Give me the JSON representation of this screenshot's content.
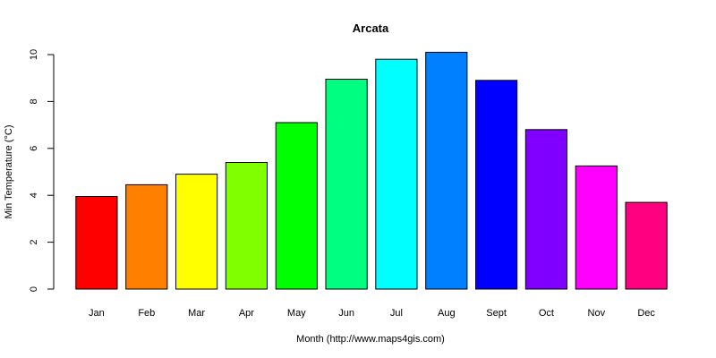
{
  "chart_data": {
    "type": "bar",
    "title": "Arcata",
    "xlabel": "Month (http://www.maps4gis.com)",
    "ylabel": "Min Temperature (°C)",
    "categories": [
      "Jan",
      "Feb",
      "Mar",
      "Apr",
      "May",
      "Jun",
      "Jul",
      "Aug",
      "Sept",
      "Oct",
      "Nov",
      "Dec"
    ],
    "values": [
      3.95,
      4.45,
      4.9,
      5.4,
      7.1,
      8.95,
      9.8,
      10.1,
      8.9,
      6.8,
      5.25,
      3.7
    ],
    "colors": [
      "#FF0000",
      "#FF8000",
      "#FFFF00",
      "#80FF00",
      "#00FF00",
      "#00FF80",
      "#00FFFF",
      "#0080FF",
      "#0000FF",
      "#8000FF",
      "#FF00FF",
      "#FF0080"
    ],
    "yticks": [
      "0",
      "2",
      "4",
      "6",
      "8",
      "10"
    ],
    "ylim": [
      0,
      10
    ],
    "grid": false,
    "legend": "none"
  }
}
